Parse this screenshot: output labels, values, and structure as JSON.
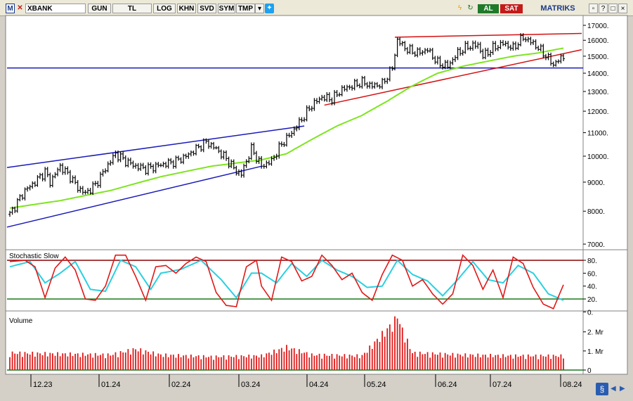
{
  "toolbar": {
    "symbol_icon": "M",
    "symbol": "XBANK",
    "buttons": [
      "GUN",
      "TL",
      "LOG",
      "KHN",
      "SVD",
      "SYM",
      "TMP"
    ],
    "al": "AL",
    "sat": "SAT",
    "brand": "MATRIKS",
    "colors": {
      "al": "#1f7a2a",
      "sat": "#c41a1a",
      "brand": "#1a3a8a"
    }
  },
  "panels": {
    "price": {
      "y_ticks": [
        "17000.",
        "16000.",
        "15000.",
        "14000.",
        "13000.",
        "12000.",
        "11000.",
        "10000.",
        "9000.",
        "8000.",
        "7000."
      ]
    },
    "stochastic": {
      "title": "Stochastic Slow",
      "y_ticks": [
        "80.",
        "60.",
        "40.",
        "20.",
        "0."
      ],
      "upper_level": 80,
      "lower_level": 20
    },
    "volume": {
      "title": "Volume",
      "y_ticks": [
        "2. Mr",
        "1. Mr",
        "0"
      ]
    }
  },
  "x_labels": [
    "12.23",
    "01.24",
    "02.24",
    "03.24",
    "04.24",
    "05.24",
    "06.24",
    "07.24",
    "08.24"
  ],
  "chart_data": {
    "type": "line",
    "symbol": "XBANK",
    "ylim": [
      7000,
      17300
    ],
    "log_scale": true,
    "grid": false,
    "price_anchors": [
      [
        0,
        7900
      ],
      [
        3,
        8300
      ],
      [
        6,
        8700
      ],
      [
        10,
        9000
      ],
      [
        14,
        9400
      ],
      [
        16,
        9000
      ],
      [
        20,
        9600
      ],
      [
        24,
        9200
      ],
      [
        27,
        8800
      ],
      [
        30,
        8600
      ],
      [
        34,
        8900
      ],
      [
        38,
        9500
      ],
      [
        42,
        10100
      ],
      [
        46,
        9800
      ],
      [
        50,
        9600
      ],
      [
        54,
        9500
      ],
      [
        58,
        9600
      ],
      [
        62,
        9700
      ],
      [
        66,
        9800
      ],
      [
        70,
        10000
      ],
      [
        74,
        10300
      ],
      [
        78,
        10600
      ],
      [
        82,
        10300
      ],
      [
        86,
        9900
      ],
      [
        90,
        9400
      ],
      [
        92,
        9300
      ],
      [
        96,
        10300
      ],
      [
        100,
        9600
      ],
      [
        104,
        9800
      ],
      [
        108,
        10500
      ],
      [
        112,
        11000
      ],
      [
        116,
        11600
      ],
      [
        120,
        12300
      ],
      [
        124,
        12700
      ],
      [
        128,
        12600
      ],
      [
        132,
        13100
      ],
      [
        136,
        13300
      ],
      [
        140,
        13500
      ],
      [
        144,
        13300
      ],
      [
        148,
        13400
      ],
      [
        152,
        14300
      ],
      [
        154,
        16000
      ],
      [
        158,
        15400
      ],
      [
        162,
        15200
      ],
      [
        166,
        15400
      ],
      [
        170,
        14600
      ],
      [
        174,
        14400
      ],
      [
        178,
        15200
      ],
      [
        182,
        15600
      ],
      [
        186,
        15700
      ],
      [
        188,
        15000
      ],
      [
        192,
        15500
      ],
      [
        196,
        15800
      ],
      [
        200,
        15500
      ],
      [
        204,
        16200
      ],
      [
        208,
        15800
      ],
      [
        212,
        15200
      ],
      [
        216,
        14500
      ],
      [
        220,
        15000
      ]
    ],
    "bars_count": 221,
    "ma_anchors": [
      [
        0,
        8100
      ],
      [
        20,
        8350
      ],
      [
        40,
        8700
      ],
      [
        60,
        9200
      ],
      [
        80,
        9600
      ],
      [
        100,
        9850
      ],
      [
        110,
        10100
      ],
      [
        120,
        10700
      ],
      [
        130,
        11300
      ],
      [
        140,
        11800
      ],
      [
        150,
        12500
      ],
      [
        160,
        13300
      ],
      [
        170,
        14000
      ],
      [
        180,
        14400
      ],
      [
        190,
        14700
      ],
      [
        200,
        15000
      ],
      [
        210,
        15200
      ],
      [
        220,
        15500
      ]
    ],
    "trendlines": [
      {
        "color": "blue",
        "from": [
          0,
          9550
        ],
        "to": [
          117,
          11300
        ]
      },
      {
        "color": "blue",
        "from": [
          0,
          7500
        ],
        "to": [
          100,
          9600
        ]
      },
      {
        "color": "blue",
        "from": [
          0,
          14300
        ],
        "to": [
          220,
          14300
        ]
      },
      {
        "color": "red",
        "from": [
          125,
          12300
        ],
        "to": [
          220,
          15400
        ]
      },
      {
        "color": "red",
        "from": [
          153,
          16200
        ],
        "to": [
          220,
          16450
        ]
      }
    ],
    "stoch_k_anchors": [
      [
        0,
        78
      ],
      [
        6,
        80
      ],
      [
        10,
        70
      ],
      [
        14,
        22
      ],
      [
        18,
        68
      ],
      [
        22,
        85
      ],
      [
        26,
        65
      ],
      [
        30,
        20
      ],
      [
        34,
        18
      ],
      [
        38,
        40
      ],
      [
        42,
        88
      ],
      [
        46,
        88
      ],
      [
        50,
        55
      ],
      [
        54,
        18
      ],
      [
        58,
        70
      ],
      [
        62,
        72
      ],
      [
        66,
        60
      ],
      [
        70,
        75
      ],
      [
        74,
        85
      ],
      [
        78,
        78
      ],
      [
        82,
        30
      ],
      [
        86,
        10
      ],
      [
        90,
        8
      ],
      [
        94,
        70
      ],
      [
        98,
        80
      ],
      [
        100,
        40
      ],
      [
        104,
        18
      ],
      [
        108,
        85
      ],
      [
        112,
        78
      ],
      [
        116,
        48
      ],
      [
        120,
        55
      ],
      [
        124,
        88
      ],
      [
        128,
        72
      ],
      [
        132,
        50
      ],
      [
        136,
        60
      ],
      [
        140,
        30
      ],
      [
        144,
        18
      ],
      [
        148,
        58
      ],
      [
        152,
        88
      ],
      [
        156,
        80
      ],
      [
        160,
        40
      ],
      [
        164,
        50
      ],
      [
        168,
        28
      ],
      [
        172,
        12
      ],
      [
        176,
        28
      ],
      [
        180,
        88
      ],
      [
        184,
        72
      ],
      [
        188,
        35
      ],
      [
        192,
        65
      ],
      [
        196,
        22
      ],
      [
        200,
        85
      ],
      [
        204,
        75
      ],
      [
        208,
        38
      ],
      [
        212,
        12
      ],
      [
        216,
        5
      ],
      [
        220,
        42
      ]
    ],
    "stoch_d_anchors": [
      [
        0,
        70
      ],
      [
        8,
        78
      ],
      [
        14,
        45
      ],
      [
        20,
        60
      ],
      [
        26,
        78
      ],
      [
        32,
        35
      ],
      [
        38,
        32
      ],
      [
        44,
        80
      ],
      [
        50,
        70
      ],
      [
        56,
        35
      ],
      [
        60,
        60
      ],
      [
        68,
        66
      ],
      [
        76,
        80
      ],
      [
        84,
        50
      ],
      [
        90,
        22
      ],
      [
        96,
        60
      ],
      [
        100,
        60
      ],
      [
        106,
        45
      ],
      [
        112,
        75
      ],
      [
        118,
        55
      ],
      [
        124,
        80
      ],
      [
        130,
        65
      ],
      [
        136,
        55
      ],
      [
        142,
        38
      ],
      [
        148,
        40
      ],
      [
        154,
        80
      ],
      [
        160,
        58
      ],
      [
        166,
        48
      ],
      [
        172,
        25
      ],
      [
        178,
        50
      ],
      [
        184,
        78
      ],
      [
        190,
        50
      ],
      [
        196,
        45
      ],
      [
        202,
        72
      ],
      [
        208,
        60
      ],
      [
        214,
        28
      ],
      [
        220,
        18
      ]
    ],
    "volume_anchors": [
      [
        0,
        0.9
      ],
      [
        20,
        0.85
      ],
      [
        40,
        0.8
      ],
      [
        50,
        1.1
      ],
      [
        60,
        0.8
      ],
      [
        80,
        0.7
      ],
      [
        100,
        0.75
      ],
      [
        110,
        1.2
      ],
      [
        120,
        0.8
      ],
      [
        140,
        0.75
      ],
      [
        154,
        2.7
      ],
      [
        160,
        0.9
      ],
      [
        180,
        0.8
      ],
      [
        200,
        0.75
      ],
      [
        220,
        0.75
      ]
    ],
    "volume_ylim": [
      0,
      2.8
    ]
  }
}
